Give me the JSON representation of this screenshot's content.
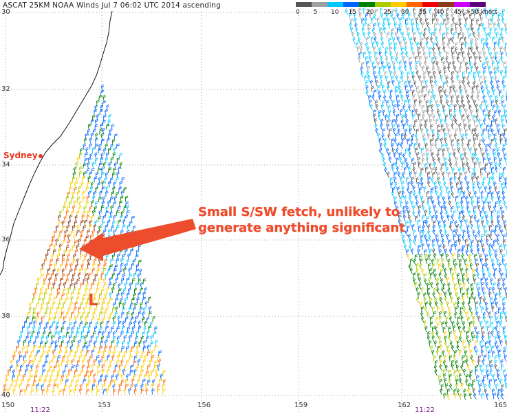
{
  "title": "ASCAT 25KM NOAA Winds Jul  7 06:02 UTC 2014 ascending",
  "legend": {
    "labels": [
      "0",
      "5",
      "10",
      "15",
      "20",
      "25",
      "30",
      "35",
      "40",
      "45",
      ">50"
    ],
    "units": "knots",
    "units_text": ">50 knots",
    "colors": [
      "#555555",
      "#a0a0a0",
      "#00c8ff",
      "#0066ff",
      "#008000",
      "#aacc00",
      "#ffcc00",
      "#ff6600",
      "#ee0000",
      "#8b3a1a",
      "#cc00ff",
      "#5a007a"
    ]
  },
  "lat_labels": [
    "30",
    "32",
    "34",
    "36",
    "38",
    "40"
  ],
  "lon_labels": [
    "150",
    "153",
    "156",
    "159",
    "162",
    "165"
  ],
  "pass_times": [
    "11:22",
    "11:22"
  ],
  "city": {
    "name": "Sydney",
    "marker_color": "#e8351e"
  },
  "annotation": {
    "line1": "Small S/SW fetch, unlikely to",
    "line2": "generate anything significant",
    "color": "#ee4d2d"
  },
  "low_pressure_label": "L",
  "map": {
    "grid_style": "dotted",
    "swaths": [
      {
        "name": "western-swath",
        "dominant_speeds_kt": "15-35",
        "max_region_kt": "30-40"
      },
      {
        "name": "eastern-swath",
        "dominant_speeds_kt": "5-25"
      }
    ]
  }
}
